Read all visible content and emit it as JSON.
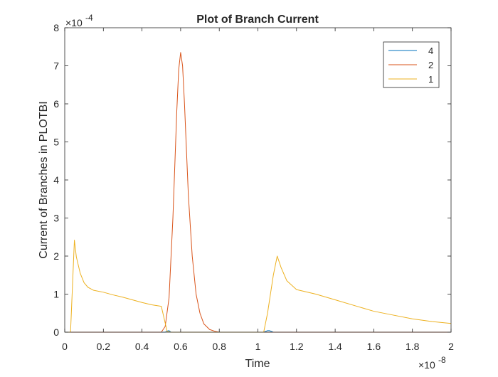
{
  "chart_data": {
    "type": "line",
    "title": "Plot of Branch Current",
    "xlabel": "Time",
    "ylabel": "Current of Branches in PLOTBI",
    "x_multiplier": {
      "base": "×10",
      "exp": "-8"
    },
    "y_multiplier": {
      "base": "×10",
      "exp": "-4"
    },
    "xlim": [
      0,
      2
    ],
    "ylim": [
      0,
      8
    ],
    "x_ticks": [
      0,
      0.2,
      0.4,
      0.6,
      0.8,
      1,
      1.2,
      1.4,
      1.6,
      1.8,
      2
    ],
    "x_tick_labels": [
      "0",
      "0.2",
      "0.4",
      "0.6",
      "0.8",
      "1",
      "1.2",
      "1.4",
      "1.6",
      "1.8",
      "2"
    ],
    "y_ticks": [
      0,
      1,
      2,
      3,
      4,
      5,
      6,
      7,
      8
    ],
    "y_tick_labels": [
      "0",
      "1",
      "2",
      "3",
      "4",
      "5",
      "6",
      "7",
      "8"
    ],
    "grid": false,
    "legend_position": "top-right",
    "series": [
      {
        "name": "4",
        "color": "#0072BD",
        "x": [
          0,
          0.52,
          0.53,
          0.54,
          0.55,
          1.03,
          1.04,
          1.05,
          1.06,
          1.07,
          1.08,
          2
        ],
        "y": [
          0,
          0,
          0.03,
          0.04,
          0,
          0,
          0.02,
          0.04,
          0.04,
          0.02,
          0,
          0
        ]
      },
      {
        "name": "2",
        "color": "#D95319",
        "x": [
          0,
          0.5,
          0.52,
          0.54,
          0.56,
          0.58,
          0.59,
          0.6,
          0.61,
          0.62,
          0.63,
          0.64,
          0.66,
          0.68,
          0.7,
          0.72,
          0.75,
          0.78,
          0.8,
          2
        ],
        "y": [
          0,
          0,
          0.15,
          0.9,
          3.0,
          5.8,
          6.9,
          7.35,
          7.0,
          6.0,
          4.8,
          3.6,
          2.0,
          1.0,
          0.5,
          0.22,
          0.07,
          0.02,
          0,
          0
        ]
      },
      {
        "name": "1",
        "color": "#EDB120",
        "x": [
          0,
          0.03,
          0.05,
          0.055,
          0.06,
          0.08,
          0.1,
          0.12,
          0.15,
          0.2,
          0.25,
          0.3,
          0.35,
          0.4,
          0.45,
          0.5,
          0.53,
          0.55,
          0.6,
          1.0,
          1.03,
          1.05,
          1.08,
          1.1,
          1.12,
          1.15,
          1.2,
          1.3,
          1.4,
          1.5,
          1.6,
          1.7,
          1.8,
          1.9,
          2.0
        ],
        "y": [
          0,
          0,
          2.42,
          2.2,
          1.98,
          1.55,
          1.3,
          1.18,
          1.1,
          1.05,
          0.98,
          0.92,
          0.85,
          0.78,
          0.72,
          0.68,
          0.02,
          0,
          0,
          0,
          0,
          0.5,
          1.5,
          2.0,
          1.7,
          1.35,
          1.12,
          1.0,
          0.85,
          0.7,
          0.55,
          0.45,
          0.35,
          0.28,
          0.23
        ]
      }
    ]
  }
}
